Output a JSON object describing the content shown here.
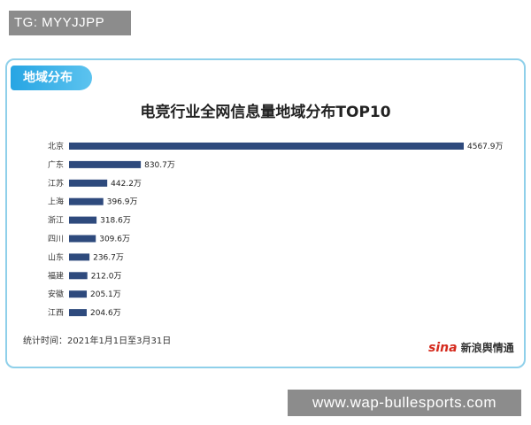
{
  "watermark_top": "TG: MYYJJPP",
  "section_tab": "地域分布",
  "footnote": "统计时间：2021年1月1日至3月31日",
  "logo_mark": "sina",
  "logo_text": "新浪舆情通",
  "watermark_bottom": "www.wap-bullesports.com",
  "colors": {
    "bar": "#2e4a7d",
    "tab": "#27a5e3",
    "card_border": "#8fd0ea"
  },
  "chart_data": {
    "type": "bar",
    "orientation": "horizontal",
    "title": "电竞行业全网信息量地域分布TOP10",
    "categories": [
      "北京",
      "广东",
      "江苏",
      "上海",
      "浙江",
      "四川",
      "山东",
      "福建",
      "安徽",
      "江西"
    ],
    "values": [
      4567.9,
      830.7,
      442.2,
      396.9,
      318.6,
      309.6,
      236.7,
      212.0,
      205.1,
      204.6
    ],
    "value_labels": [
      "4567.9万",
      "830.7万",
      "442.2万",
      "396.9万",
      "318.6万",
      "309.6万",
      "236.7万",
      "212.0万",
      "205.1万",
      "204.6万"
    ],
    "unit": "万",
    "xlim": [
      0,
      4567.9
    ],
    "grid": false,
    "legend": "none"
  }
}
